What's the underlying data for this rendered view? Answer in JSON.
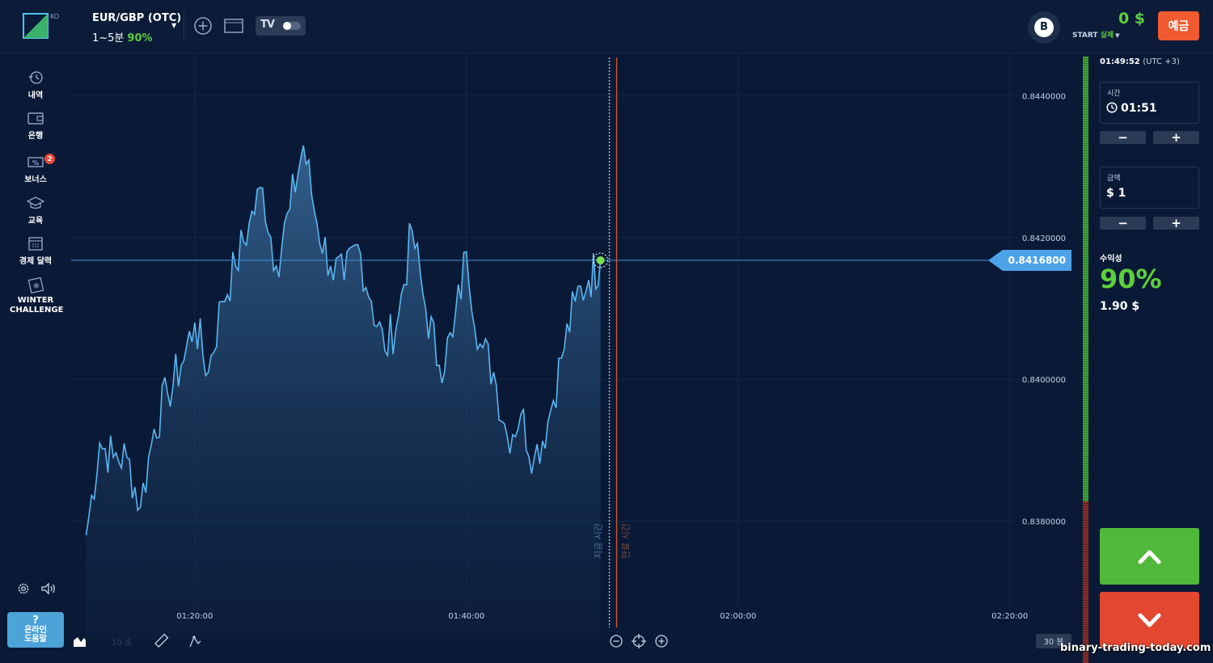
{
  "header": {
    "logo_lang": "KO",
    "asset_name": "EUR/GBP (OTC)",
    "asset_duration": "1~5분",
    "asset_payout": "90%",
    "tv_label": "TV",
    "badge_letter": "B",
    "balance": "0 $",
    "account_level": "START",
    "account_type": "실제",
    "deposit_label": "예금"
  },
  "sidebar": {
    "items": [
      {
        "label": "내역",
        "icon": "history-icon"
      },
      {
        "label": "은행",
        "icon": "wallet-icon"
      },
      {
        "label": "보너스",
        "icon": "bonus-icon",
        "badge": "2"
      },
      {
        "label": "교육",
        "icon": "graduation-cap-icon"
      },
      {
        "label": "경제 달력",
        "icon": "calendar-icon"
      },
      {
        "label": "WINTER CHALLENGE",
        "icon": "snowflake-card-icon"
      }
    ],
    "help_label": "온라인 도움말",
    "help_glyph": "?"
  },
  "chart_data": {
    "type": "area",
    "asset": "EUR/GBP (OTC)",
    "x_ticks": [
      "01:20:00",
      "01:40:00",
      "02:00:00",
      "02:20:00"
    ],
    "y_ticks": [
      "0.8440000",
      "0.8420000",
      "0.8400000",
      "0.8380000"
    ],
    "ylim": [
      0.8365,
      0.8446
    ],
    "current_price": "0.8416800",
    "current_time_label": "지금 시간",
    "expiry_time_label": "만료 시간",
    "timeframe_label": "10 초",
    "zoom_label": "30 분",
    "x": [
      "01:12",
      "01:13",
      "01:14",
      "01:15",
      "01:16",
      "01:17",
      "01:18",
      "01:19",
      "01:20",
      "01:21",
      "01:22",
      "01:23",
      "01:24",
      "01:25",
      "01:26",
      "01:27",
      "01:28",
      "01:29",
      "01:30",
      "01:31",
      "01:32",
      "01:33",
      "01:34",
      "01:35",
      "01:36",
      "01:37",
      "01:38",
      "01:39",
      "01:40",
      "01:41",
      "01:42",
      "01:43",
      "01:44",
      "01:45",
      "01:46",
      "01:47",
      "01:48",
      "01:49",
      "01:49:52"
    ],
    "values": [
      0.8378,
      0.8391,
      0.8389,
      0.8389,
      0.8382,
      0.8393,
      0.8398,
      0.8402,
      0.8408,
      0.8401,
      0.8411,
      0.8416,
      0.8422,
      0.8427,
      0.8416,
      0.8424,
      0.8433,
      0.8422,
      0.8416,
      0.8414,
      0.8419,
      0.8411,
      0.8404,
      0.8409,
      0.8421,
      0.841,
      0.8402,
      0.8406,
      0.8418,
      0.8405,
      0.8401,
      0.8392,
      0.8395,
      0.8389,
      0.8394,
      0.8403,
      0.8411,
      0.8414,
      0.84168
    ]
  },
  "trade_panel": {
    "clock_time": "01:49:52",
    "clock_tz": "(UTC +3)",
    "time_label": "시간",
    "time_value": "01:51",
    "amount_label": "금액",
    "amount_value": "$ 1",
    "minus": "−",
    "plus": "+",
    "payout_label": "수익성",
    "payout_pct": "90%",
    "payout_amount": "1.90 $"
  },
  "watermark": "binary-trading-today.com",
  "colors": {
    "background": "#0a1a36",
    "line": "#5ab6f0",
    "green": "#50b83a",
    "red": "#e4472f",
    "deposit": "#ef5a2f"
  }
}
